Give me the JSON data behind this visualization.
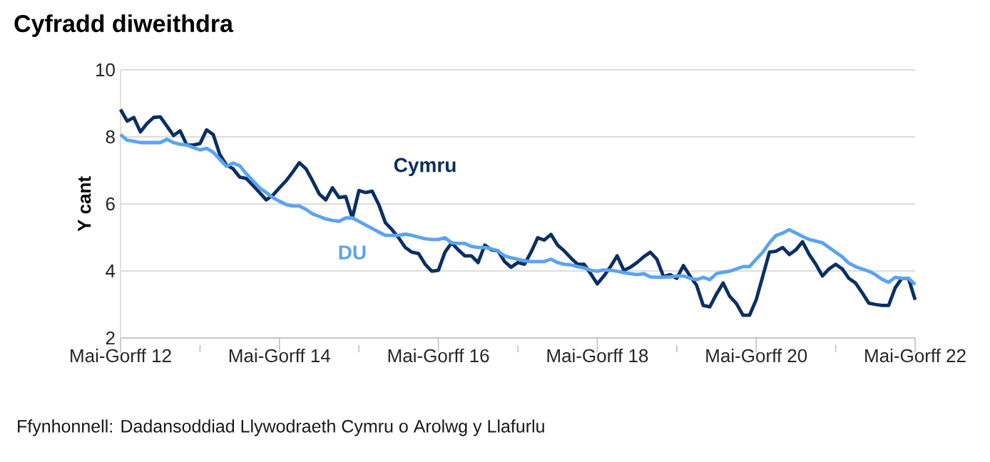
{
  "chart_data": {
    "type": "line",
    "title": "Cyfradd diweithdra",
    "ylabel": "Y cant",
    "annotations": [
      "Ffynhonnell: Dadansoddiad Llywodraeth Cymru o Arolwg y Llafurlu"
    ],
    "categories": [
      "Mai-Gorff 12",
      null,
      null,
      null,
      null,
      null,
      null,
      null,
      null,
      null,
      null,
      null,
      null,
      null,
      null,
      null,
      null,
      null,
      null,
      null,
      null,
      null,
      null,
      null,
      "Mai-Gorff 14",
      null,
      null,
      null,
      null,
      null,
      null,
      null,
      null,
      null,
      null,
      null,
      null,
      null,
      null,
      null,
      null,
      null,
      null,
      null,
      null,
      null,
      null,
      null,
      "Mai-Gorff 16",
      null,
      null,
      null,
      null,
      null,
      null,
      null,
      null,
      null,
      null,
      null,
      null,
      null,
      null,
      null,
      null,
      null,
      null,
      null,
      null,
      null,
      null,
      null,
      "Mai-Gorff 18",
      null,
      null,
      null,
      null,
      null,
      null,
      null,
      null,
      null,
      null,
      null,
      null,
      null,
      null,
      null,
      null,
      null,
      null,
      null,
      null,
      null,
      null,
      null,
      "Mai-Gorff 20",
      null,
      null,
      null,
      null,
      null,
      null,
      null,
      null,
      null,
      null,
      null,
      null,
      null,
      null,
      null,
      null,
      null,
      null,
      null,
      null,
      null,
      null,
      null,
      "Mai-Gorff 22"
    ],
    "series": [
      {
        "name": "Cymru",
        "color": "#0b2f63",
        "values": [
          8.82,
          8.47,
          8.58,
          8.15,
          8.4,
          8.58,
          8.6,
          8.32,
          8.04,
          8.18,
          7.76,
          7.76,
          7.8,
          8.21,
          8.07,
          7.47,
          7.16,
          7.05,
          6.8,
          6.76,
          6.55,
          6.34,
          6.12,
          6.26,
          6.48,
          6.69,
          6.95,
          7.23,
          7.05,
          6.69,
          6.3,
          6.12,
          6.48,
          6.19,
          6.22,
          5.58,
          6.4,
          6.34,
          6.38,
          5.98,
          5.44,
          5.23,
          4.99,
          4.7,
          4.56,
          4.52,
          4.2,
          3.99,
          4.02,
          4.56,
          4.84,
          4.63,
          4.45,
          4.45,
          4.25,
          4.77,
          4.63,
          4.6,
          4.28,
          4.11,
          4.25,
          4.2,
          4.56,
          4.99,
          4.92,
          5.09,
          4.77,
          4.6,
          4.39,
          4.2,
          4.2,
          3.92,
          3.61,
          3.85,
          4.13,
          4.45,
          4.02,
          4.11,
          4.25,
          4.42,
          4.56,
          4.35,
          3.83,
          3.89,
          3.78,
          4.16,
          3.85,
          3.57,
          2.97,
          2.93,
          3.31,
          3.64,
          3.24,
          3.03,
          2.68,
          2.68,
          3.14,
          3.85,
          4.56,
          4.59,
          4.7,
          4.49,
          4.63,
          4.87,
          4.49,
          4.2,
          3.85,
          4.06,
          4.2,
          4.06,
          3.78,
          3.64,
          3.35,
          3.04,
          3.0,
          2.97,
          2.97,
          3.5,
          3.78,
          3.78,
          3.14
        ]
      },
      {
        "name": "DU",
        "color": "#5ba3f0",
        "values": [
          8.07,
          7.9,
          7.87,
          7.83,
          7.83,
          7.83,
          7.83,
          7.93,
          7.83,
          7.78,
          7.76,
          7.68,
          7.61,
          7.66,
          7.54,
          7.33,
          7.12,
          7.22,
          7.14,
          6.9,
          6.69,
          6.48,
          6.34,
          6.19,
          6.08,
          5.98,
          5.94,
          5.94,
          5.84,
          5.7,
          5.63,
          5.55,
          5.51,
          5.48,
          5.58,
          5.58,
          5.48,
          5.37,
          5.27,
          5.16,
          5.06,
          5.06,
          5.06,
          5.1,
          5.06,
          5.01,
          4.96,
          4.94,
          4.94,
          4.99,
          4.84,
          4.82,
          4.82,
          4.73,
          4.7,
          4.7,
          4.66,
          4.6,
          4.45,
          4.39,
          4.35,
          4.3,
          4.28,
          4.28,
          4.28,
          4.35,
          4.25,
          4.2,
          4.18,
          4.13,
          4.09,
          4.02,
          3.99,
          4.03,
          4.02,
          3.99,
          3.95,
          3.92,
          3.89,
          3.92,
          3.82,
          3.81,
          3.81,
          3.82,
          3.85,
          3.85,
          3.78,
          3.74,
          3.81,
          3.74,
          3.92,
          3.96,
          3.99,
          4.06,
          4.13,
          4.13,
          4.35,
          4.56,
          4.84,
          5.06,
          5.13,
          5.23,
          5.13,
          5.03,
          4.94,
          4.89,
          4.84,
          4.7,
          4.56,
          4.42,
          4.23,
          4.13,
          4.06,
          3.99,
          3.89,
          3.75,
          3.66,
          3.81,
          3.78,
          3.78,
          3.59
        ]
      }
    ],
    "ylim": [
      2,
      10
    ],
    "yticks": [
      2,
      4,
      6,
      8,
      10
    ],
    "grid": "y",
    "line_style": "solid"
  }
}
